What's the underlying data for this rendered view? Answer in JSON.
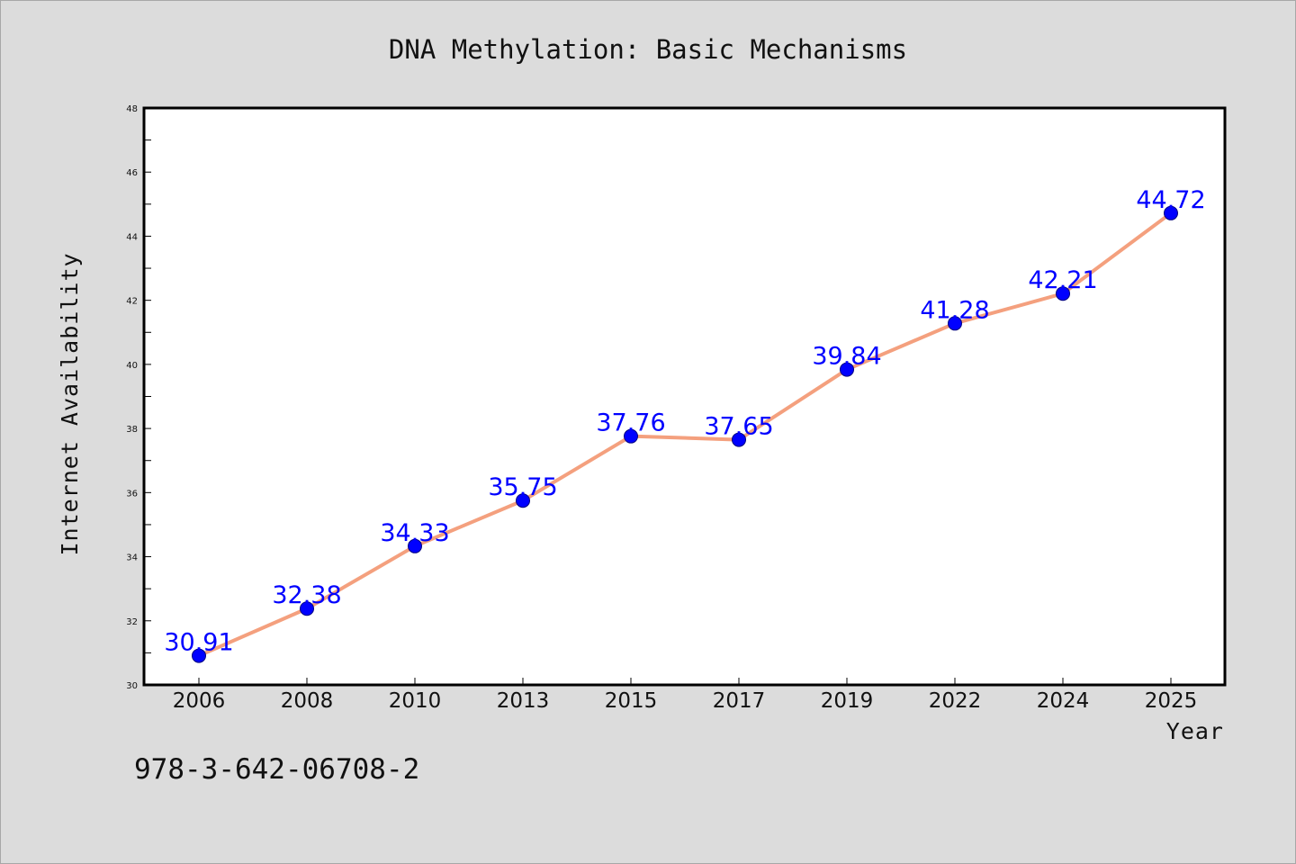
{
  "chart_data": {
    "type": "line",
    "title": "DNA Methylation: Basic Mechanisms",
    "xlabel": "Year",
    "ylabel": "Internet Availability",
    "categories": [
      "2006",
      "2008",
      "2010",
      "2013",
      "2015",
      "2017",
      "2019",
      "2022",
      "2024",
      "2025"
    ],
    "series": [
      {
        "values": [
          30.91,
          32.38,
          34.33,
          35.75,
          37.76,
          37.65,
          39.84,
          41.28,
          42.21,
          44.72
        ],
        "labels": [
          "30.91",
          "32.38",
          "34.33",
          "35.75",
          "37.76",
          "37.65",
          "39.84",
          "41.28",
          "42.21",
          "44.72"
        ]
      }
    ],
    "ylim": [
      30,
      48
    ],
    "yticks": [
      "30",
      "32",
      "34",
      "36",
      "38",
      "40",
      "42",
      "44",
      "46",
      "48"
    ],
    "grid": false,
    "legend": "none",
    "line_color": "#f4a07e",
    "marker_color": "#0000ff",
    "label_color": "#0000ff",
    "plot_background": "#ffffff",
    "figure_background": "#dcdcdc"
  },
  "footer": {
    "isbn": "978-3-642-06708-2"
  }
}
